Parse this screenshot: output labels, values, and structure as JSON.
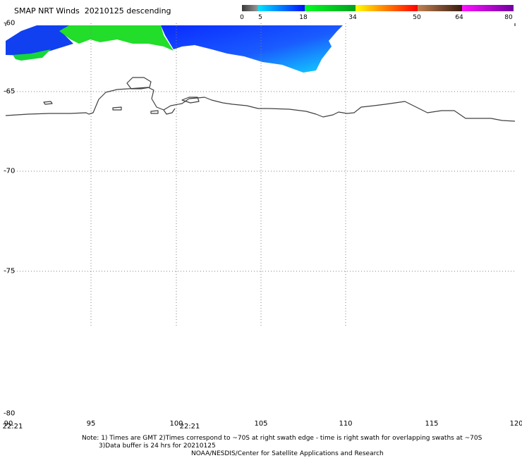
{
  "header": {
    "title": "SMAP NRT Winds  20210125 descending"
  },
  "colorbar": {
    "stops": [
      {
        "from": 0,
        "to": 5,
        "colors": [
          "#3a3a3a",
          "#9a9a9a"
        ]
      },
      {
        "from": 5,
        "to": 18,
        "colors": [
          "#00e5ff",
          "#0010ff"
        ]
      },
      {
        "from": 18,
        "to": 34,
        "colors": [
          "#00ff20",
          "#00a020"
        ]
      },
      {
        "from": 34,
        "to": 50,
        "colors": [
          "#ffff00",
          "#ff8800",
          "#ff0000"
        ]
      },
      {
        "from": 50,
        "to": 64,
        "colors": [
          "#c08050",
          "#3a1a10"
        ]
      },
      {
        "from": 64,
        "to": 80,
        "colors": [
          "#ff10ff",
          "#7000a0"
        ]
      }
    ],
    "labels": [
      "0",
      "5",
      "18",
      "34",
      "50",
      "64",
      "80"
    ]
  },
  "map": {
    "lon_range": [
      90,
      120
    ],
    "lat_range": [
      -80,
      -60
    ],
    "grid": true,
    "lat_labels": [
      "-60",
      "-65",
      "-70",
      "-75",
      "-80"
    ],
    "lon_labels": [
      "90",
      "95",
      "100",
      "105",
      "110",
      "115",
      "120"
    ],
    "time_labels": [
      "22:21",
      "22:21"
    ]
  },
  "footer": {
    "note_line1": "Note: 1) Times are GMT 2)Times correspond to ~70S at right swath edge - time is right swath for overlapping swaths at ~70S",
    "note_line2": "3)Data buffer is 24 hrs for 20210125",
    "credit": "NOAA/NESDIS/Center for Satellite Applications and Research"
  }
}
